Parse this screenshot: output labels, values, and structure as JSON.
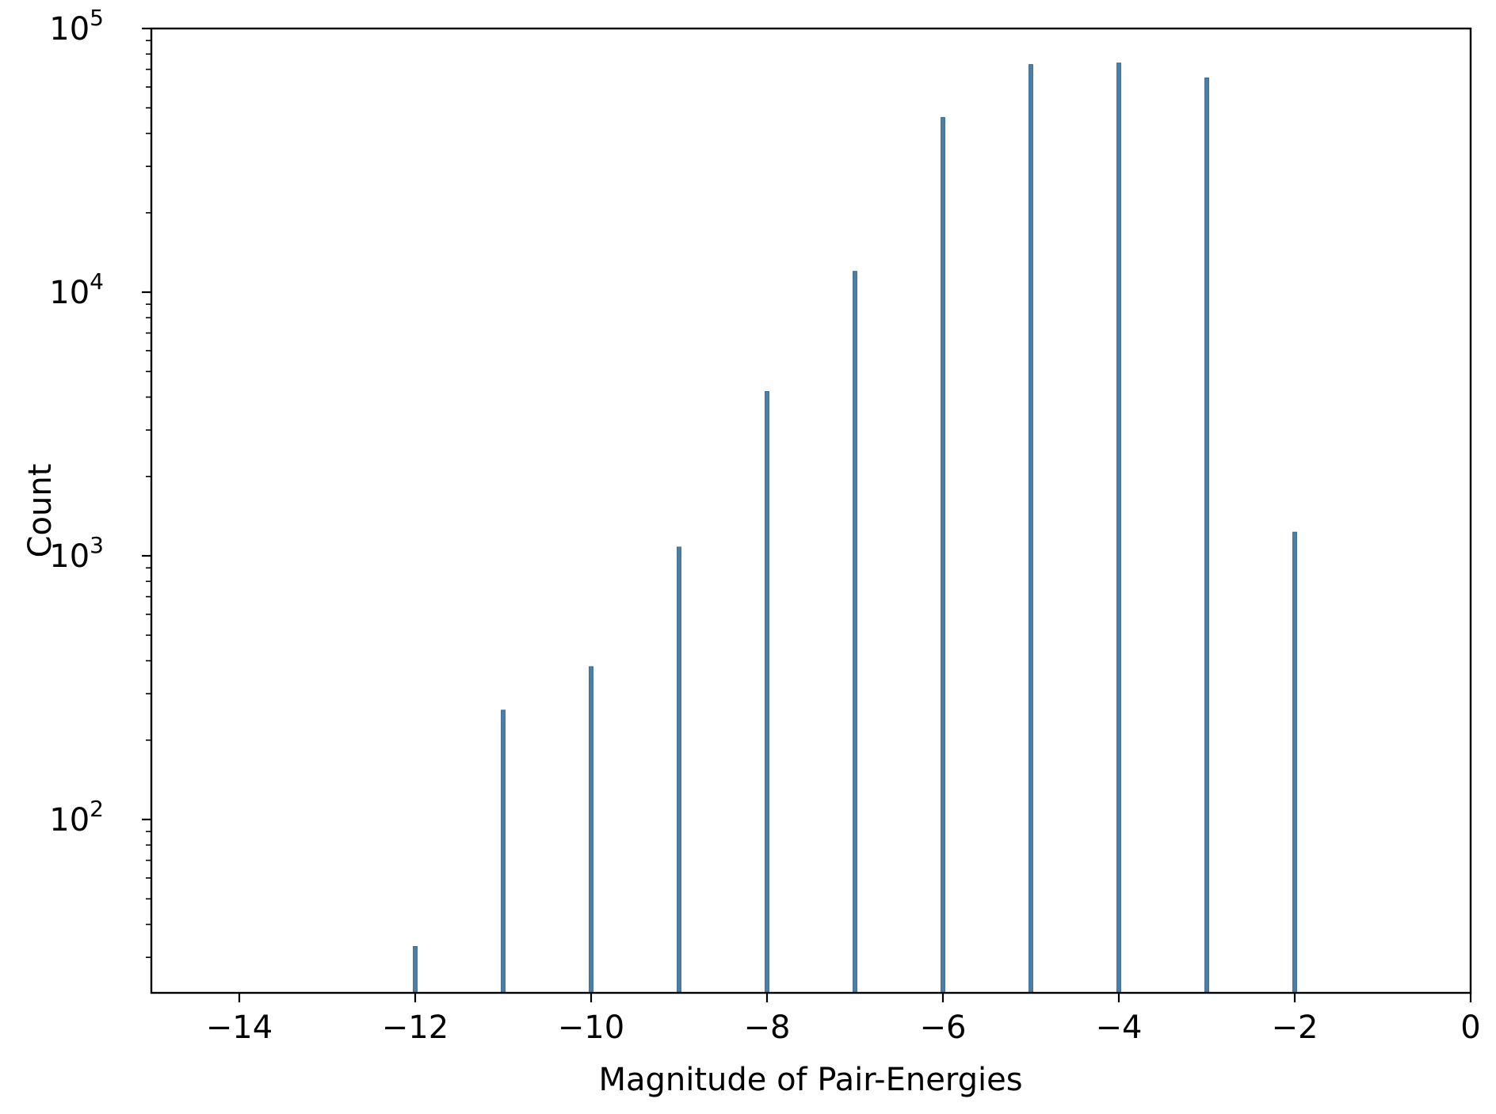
{
  "chart_data": {
    "type": "bar",
    "title": "",
    "xlabel": "Magnitude of Pair-Energies",
    "ylabel": "Count",
    "xlim": [
      -15,
      0
    ],
    "ylim": [
      22,
      100000
    ],
    "yscale": "log",
    "grid": false,
    "bar_color": "#4c7fa8",
    "x_ticks": [
      {
        "value": -14,
        "label": "−14"
      },
      {
        "value": -12,
        "label": "−12"
      },
      {
        "value": -10,
        "label": "−10"
      },
      {
        "value": -8,
        "label": "−8"
      },
      {
        "value": -6,
        "label": "−6"
      },
      {
        "value": -4,
        "label": "−4"
      },
      {
        "value": -2,
        "label": "−2"
      },
      {
        "value": 0,
        "label": "0"
      }
    ],
    "y_ticks": [
      {
        "value": 100,
        "base": "10",
        "exp": "2"
      },
      {
        "value": 1000,
        "base": "10",
        "exp": "3"
      },
      {
        "value": 10000,
        "base": "10",
        "exp": "4"
      },
      {
        "value": 100000,
        "base": "10",
        "exp": "5"
      }
    ],
    "x": [
      -12,
      -11,
      -10,
      -9,
      -8,
      -7,
      -6,
      -5,
      -4,
      -3,
      -2
    ],
    "values": [
      33,
      260,
      380,
      1080,
      4200,
      12000,
      46000,
      73000,
      74000,
      65000,
      1230
    ]
  }
}
